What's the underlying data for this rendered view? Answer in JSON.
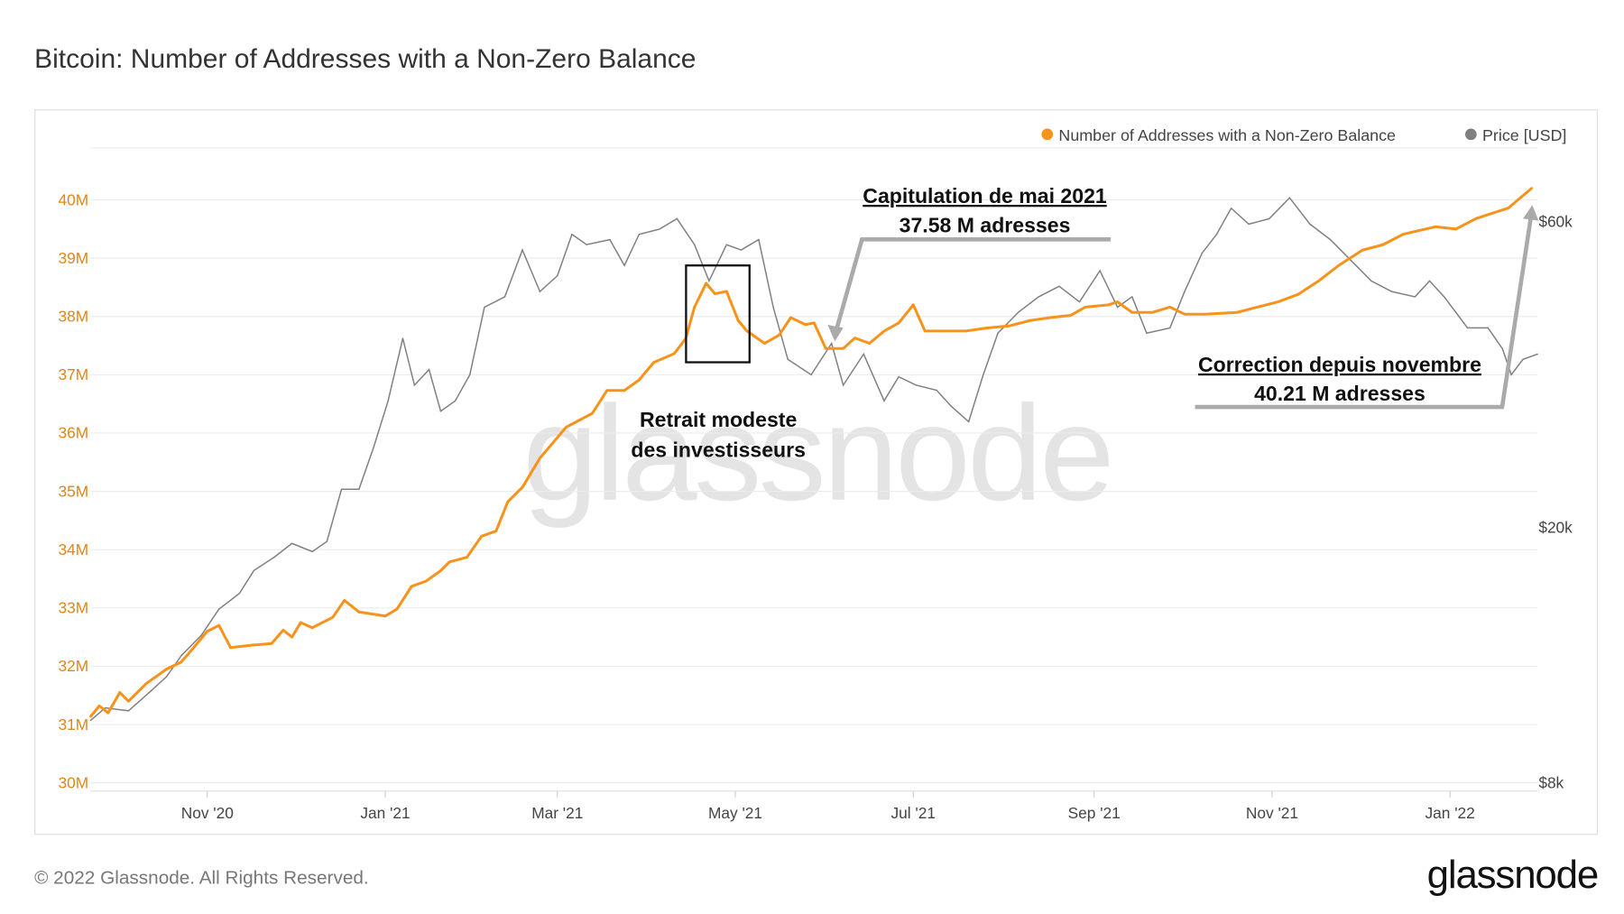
{
  "title": "Bitcoin: Number of Addresses with a Non-Zero Balance",
  "footer": {
    "copyright": "© 2022 Glassnode. All Rights Reserved.",
    "logo": "glassnode",
    "watermark": "glassnode"
  },
  "colors": {
    "addresses": "#f7931a",
    "price": "#808080",
    "left_axis_text": "#e0861a",
    "annotation_line": "#aaaaaa"
  },
  "chart_data": {
    "type": "line",
    "legend_position": "top-right",
    "grid": true,
    "legend": [
      {
        "label": "Number of Addresses with a Non-Zero Balance",
        "color": "#f7931a"
      },
      {
        "label": "Price [USD]",
        "color": "#808080"
      }
    ],
    "x_range": [
      "2020-09-22",
      "2022-01-31"
    ],
    "x_ticks": [
      {
        "date": "2020-11-01",
        "label": "Nov '20"
      },
      {
        "date": "2021-01-01",
        "label": "Jan '21"
      },
      {
        "date": "2021-03-01",
        "label": "Mar '21"
      },
      {
        "date": "2021-05-01",
        "label": "May '21"
      },
      {
        "date": "2021-07-01",
        "label": "Jul '21"
      },
      {
        "date": "2021-09-01",
        "label": "Sep '21"
      },
      {
        "date": "2021-11-01",
        "label": "Nov '21"
      },
      {
        "date": "2022-01-01",
        "label": "Jan '22"
      }
    ],
    "y_left": {
      "unit": "M",
      "range": [
        30,
        40.5
      ],
      "ticks": [
        {
          "v": 30,
          "label": "30M"
        },
        {
          "v": 31,
          "label": "31M"
        },
        {
          "v": 32,
          "label": "32M"
        },
        {
          "v": 33,
          "label": "33M"
        },
        {
          "v": 34,
          "label": "34M"
        },
        {
          "v": 35,
          "label": "35M"
        },
        {
          "v": 36,
          "label": "36M"
        },
        {
          "v": 37,
          "label": "37M"
        },
        {
          "v": 38,
          "label": "38M"
        },
        {
          "v": 39,
          "label": "39M"
        },
        {
          "v": 40,
          "label": "40M"
        }
      ]
    },
    "y_right": {
      "scale": "log",
      "unit": "USD thousands",
      "range": [
        8,
        68
      ],
      "ticks": [
        {
          "v": 8,
          "label": "$8k"
        },
        {
          "v": 20,
          "label": "$20k"
        },
        {
          "v": 60,
          "label": "$60k"
        }
      ]
    },
    "series": [
      {
        "name": "Number of Addresses with a Non-Zero Balance",
        "axis": "left",
        "points": [
          [
            "2020-09-22",
            31.14
          ],
          [
            "2020-09-25",
            31.32
          ],
          [
            "2020-09-28",
            31.2
          ],
          [
            "2020-10-02",
            31.55
          ],
          [
            "2020-10-05",
            31.4
          ],
          [
            "2020-10-11",
            31.7
          ],
          [
            "2020-10-18",
            31.95
          ],
          [
            "2020-10-23",
            32.07
          ],
          [
            "2020-10-27",
            32.3
          ],
          [
            "2020-11-01",
            32.6
          ],
          [
            "2020-11-05",
            32.7
          ],
          [
            "2020-11-09",
            32.32
          ],
          [
            "2020-11-16",
            32.36
          ],
          [
            "2020-11-23",
            32.39
          ],
          [
            "2020-11-27",
            32.62
          ],
          [
            "2020-11-30",
            32.5
          ],
          [
            "2020-12-03",
            32.75
          ],
          [
            "2020-12-07",
            32.66
          ],
          [
            "2020-12-14",
            32.84
          ],
          [
            "2020-12-18",
            33.13
          ],
          [
            "2020-12-23",
            32.93
          ],
          [
            "2021-01-01",
            32.86
          ],
          [
            "2021-01-05",
            32.98
          ],
          [
            "2021-01-10",
            33.37
          ],
          [
            "2021-01-15",
            33.46
          ],
          [
            "2021-01-20",
            33.64
          ],
          [
            "2021-01-23",
            33.79
          ],
          [
            "2021-01-29",
            33.87
          ],
          [
            "2021-02-03",
            34.23
          ],
          [
            "2021-02-08",
            34.32
          ],
          [
            "2021-02-12",
            34.82
          ],
          [
            "2021-02-17",
            35.07
          ],
          [
            "2021-02-23",
            35.57
          ],
          [
            "2021-03-04",
            36.1
          ],
          [
            "2021-03-13",
            36.34
          ],
          [
            "2021-03-18",
            36.73
          ],
          [
            "2021-03-24",
            36.73
          ],
          [
            "2021-03-29",
            36.91
          ],
          [
            "2021-04-03",
            37.21
          ],
          [
            "2021-04-10",
            37.36
          ],
          [
            "2021-04-14",
            37.62
          ],
          [
            "2021-04-17",
            38.16
          ],
          [
            "2021-04-21",
            38.57
          ],
          [
            "2021-04-24",
            38.39
          ],
          [
            "2021-04-28",
            38.43
          ],
          [
            "2021-05-02",
            37.93
          ],
          [
            "2021-05-05",
            37.75
          ],
          [
            "2021-05-11",
            37.54
          ],
          [
            "2021-05-16",
            37.68
          ],
          [
            "2021-05-20",
            37.98
          ],
          [
            "2021-05-25",
            37.86
          ],
          [
            "2021-05-28",
            37.89
          ],
          [
            "2021-06-01",
            37.45
          ],
          [
            "2021-06-07",
            37.45
          ],
          [
            "2021-06-11",
            37.63
          ],
          [
            "2021-06-16",
            37.54
          ],
          [
            "2021-06-21",
            37.75
          ],
          [
            "2021-06-26",
            37.89
          ],
          [
            "2021-07-01",
            38.2
          ],
          [
            "2021-07-05",
            37.75
          ],
          [
            "2021-07-10",
            37.75
          ],
          [
            "2021-07-19",
            37.75
          ],
          [
            "2021-07-26",
            37.8
          ],
          [
            "2021-08-03",
            37.84
          ],
          [
            "2021-08-10",
            37.93
          ],
          [
            "2021-08-17",
            37.98
          ],
          [
            "2021-08-24",
            38.02
          ],
          [
            "2021-08-29",
            38.16
          ],
          [
            "2021-09-06",
            38.2
          ],
          [
            "2021-09-09",
            38.25
          ],
          [
            "2021-09-14",
            38.07
          ],
          [
            "2021-09-21",
            38.07
          ],
          [
            "2021-09-27",
            38.16
          ],
          [
            "2021-10-02",
            38.04
          ],
          [
            "2021-10-09",
            38.04
          ],
          [
            "2021-10-20",
            38.07
          ],
          [
            "2021-10-27",
            38.16
          ],
          [
            "2021-11-03",
            38.25
          ],
          [
            "2021-11-10",
            38.38
          ],
          [
            "2021-11-17",
            38.61
          ],
          [
            "2021-11-24",
            38.88
          ],
          [
            "2021-12-02",
            39.14
          ],
          [
            "2021-12-09",
            39.23
          ],
          [
            "2021-12-16",
            39.41
          ],
          [
            "2021-12-27",
            39.54
          ],
          [
            "2022-01-03",
            39.5
          ],
          [
            "2022-01-10",
            39.68
          ],
          [
            "2022-01-21",
            39.86
          ],
          [
            "2022-01-29",
            40.2
          ]
        ]
      },
      {
        "name": "Price [USD]",
        "axis": "right",
        "points": [
          [
            "2020-09-22",
            10.01
          ],
          [
            "2020-09-27",
            10.47
          ],
          [
            "2020-10-05",
            10.36
          ],
          [
            "2020-10-11",
            10.95
          ],
          [
            "2020-10-18",
            11.71
          ],
          [
            "2020-10-23",
            12.62
          ],
          [
            "2020-10-30",
            13.6
          ],
          [
            "2020-11-05",
            14.93
          ],
          [
            "2020-11-12",
            15.79
          ],
          [
            "2020-11-17",
            17.15
          ],
          [
            "2020-11-24",
            18.0
          ],
          [
            "2020-11-30",
            18.9
          ],
          [
            "2020-12-07",
            18.35
          ],
          [
            "2020-12-12",
            19.04
          ],
          [
            "2020-12-17",
            22.96
          ],
          [
            "2020-12-23",
            22.96
          ],
          [
            "2020-12-28",
            26.67
          ],
          [
            "2021-01-02",
            31.54
          ],
          [
            "2021-01-07",
            39.47
          ],
          [
            "2021-01-11",
            33.36
          ],
          [
            "2021-01-16",
            35.29
          ],
          [
            "2021-01-20",
            30.39
          ],
          [
            "2021-01-25",
            31.54
          ],
          [
            "2021-01-30",
            34.63
          ],
          [
            "2021-02-04",
            44.15
          ],
          [
            "2021-02-11",
            45.83
          ],
          [
            "2021-02-17",
            54.22
          ],
          [
            "2021-02-23",
            46.69
          ],
          [
            "2021-03-01",
            49.42
          ],
          [
            "2021-03-06",
            57.35
          ],
          [
            "2021-03-11",
            55.26
          ],
          [
            "2021-03-19",
            56.27
          ],
          [
            "2021-03-24",
            51.29
          ],
          [
            "2021-03-29",
            57.35
          ],
          [
            "2021-04-05",
            58.44
          ],
          [
            "2021-04-11",
            60.66
          ],
          [
            "2021-04-17",
            55.26
          ],
          [
            "2021-04-22",
            48.5
          ],
          [
            "2021-04-28",
            55.26
          ],
          [
            "2021-05-03",
            54.22
          ],
          [
            "2021-05-09",
            56.27
          ],
          [
            "2021-05-14",
            44.15
          ],
          [
            "2021-05-19",
            36.6
          ],
          [
            "2021-05-27",
            34.63
          ],
          [
            "2021-06-03",
            38.76
          ],
          [
            "2021-06-07",
            33.36
          ],
          [
            "2021-06-14",
            37.31
          ],
          [
            "2021-06-21",
            31.54
          ],
          [
            "2021-06-26",
            34.39
          ],
          [
            "2021-07-02",
            33.36
          ],
          [
            "2021-07-09",
            32.76
          ],
          [
            "2021-07-14",
            30.94
          ],
          [
            "2021-07-20",
            29.26
          ],
          [
            "2021-07-25",
            34.63
          ],
          [
            "2021-07-30",
            40.22
          ],
          [
            "2021-08-06",
            43.35
          ],
          [
            "2021-08-13",
            45.83
          ],
          [
            "2021-08-20",
            47.59
          ],
          [
            "2021-08-27",
            45.0
          ],
          [
            "2021-09-03",
            50.33
          ],
          [
            "2021-09-09",
            44.15
          ],
          [
            "2021-09-14",
            45.83
          ],
          [
            "2021-09-19",
            40.22
          ],
          [
            "2021-09-27",
            40.98
          ],
          [
            "2021-10-02",
            46.69
          ],
          [
            "2021-10-08",
            53.6
          ],
          [
            "2021-10-13",
            57.35
          ],
          [
            "2021-10-18",
            63.0
          ],
          [
            "2021-10-24",
            59.5
          ],
          [
            "2021-10-31",
            60.66
          ],
          [
            "2021-11-07",
            65.4
          ],
          [
            "2021-11-14",
            59.5
          ],
          [
            "2021-11-21",
            56.27
          ],
          [
            "2021-11-28",
            52.25
          ],
          [
            "2021-12-05",
            48.5
          ],
          [
            "2021-12-12",
            46.69
          ],
          [
            "2021-12-20",
            45.83
          ],
          [
            "2021-12-25",
            48.5
          ],
          [
            "2021-12-30",
            45.83
          ],
          [
            "2022-01-03",
            43.35
          ],
          [
            "2022-01-07",
            40.98
          ],
          [
            "2022-01-14",
            40.98
          ],
          [
            "2022-01-19",
            38.0
          ],
          [
            "2022-01-22",
            34.63
          ],
          [
            "2022-01-26",
            36.6
          ],
          [
            "2022-01-31",
            37.31
          ]
        ]
      }
    ],
    "annotations": {
      "box_label": [
        "Retrait modeste",
        "des investisseurs"
      ],
      "capitulation": [
        "Capitulation de mai 2021",
        "37.58 M adresses"
      ],
      "correction": [
        "Correction depuis novembre",
        "40.21 M adresses"
      ]
    }
  }
}
